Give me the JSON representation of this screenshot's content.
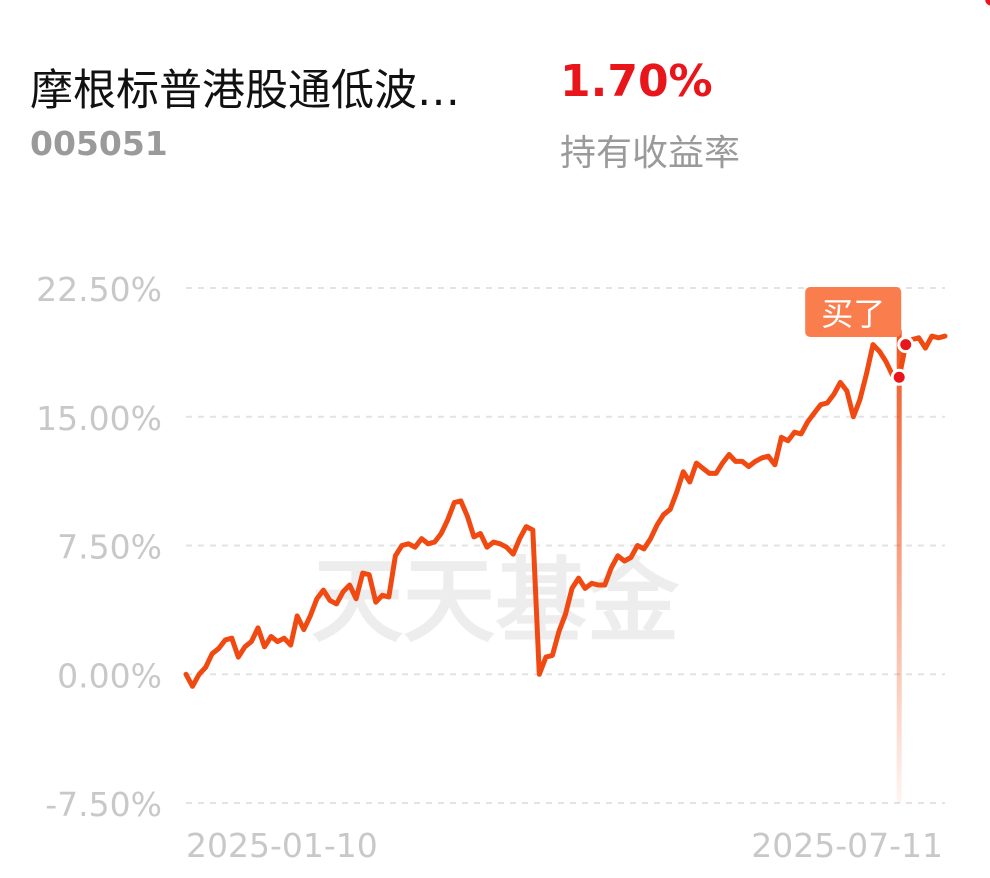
{
  "header": {
    "fund_name": "摩根标普港股通低波…",
    "fund_code": "005051",
    "holding_return": "1.70%",
    "holding_return_label": "持有收益率"
  },
  "colors": {
    "line": "#f04a12",
    "return_positive": "#e8161b",
    "marker_tag": "#fa7d4e",
    "axis_text": "#c8c8c8",
    "grid": "#e3e3e3"
  },
  "chart_data": {
    "type": "line",
    "watermark": "天天基金",
    "y_ticks": [
      "22.50%",
      "15.00%",
      "7.50%",
      "0.00%",
      "-7.50%"
    ],
    "y_tick_values": [
      22.5,
      15,
      7.5,
      0,
      -7.5
    ],
    "ylim": [
      -7.5,
      22.5
    ],
    "x_tick_labels": [
      "2025-01-10",
      "2025-07-11"
    ],
    "grid": "horizontal dashed",
    "buy_marker_label": "买了",
    "buy_index": 109,
    "trade_point_indices": [
      109,
      110,
      123,
      126,
      127
    ],
    "series": [
      {
        "values": [
          0.0,
          -0.7,
          0.0,
          0.4,
          1.2,
          1.5,
          2.0,
          2.1,
          1.0,
          1.6,
          1.9,
          2.7,
          1.6,
          2.2,
          1.9,
          2.1,
          1.7,
          3.4,
          2.6,
          3.4,
          4.4,
          4.9,
          4.3,
          4.1,
          4.8,
          5.2,
          4.4,
          5.9,
          5.8,
          4.2,
          4.6,
          4.5,
          6.9,
          7.5,
          7.6,
          7.4,
          7.9,
          7.6,
          7.7,
          8.2,
          9.0,
          10.0,
          10.1,
          9.2,
          8.0,
          8.2,
          7.4,
          7.7,
          7.6,
          7.4,
          7.0,
          7.9,
          8.6,
          8.4,
          0.0,
          1.0,
          1.1,
          2.5,
          3.5,
          5.0,
          5.6,
          5.0,
          5.3,
          5.2,
          5.2,
          6.2,
          6.9,
          6.6,
          6.8,
          7.5,
          7.3,
          7.9,
          8.7,
          9.3,
          9.6,
          10.6,
          11.8,
          11.2,
          12.3,
          12.0,
          11.7,
          11.7,
          12.3,
          12.8,
          12.4,
          12.4,
          12.1,
          12.4,
          12.6,
          12.7,
          12.2,
          13.8,
          13.6,
          14.1,
          14.0,
          14.7,
          15.2,
          15.7,
          15.8,
          16.3,
          17.0,
          16.5,
          15.0,
          16.0,
          17.5,
          19.2,
          18.8,
          18.2,
          17.4,
          17.3,
          19.2,
          19.5,
          19.6,
          19.0,
          19.7,
          19.6,
          19.7
        ]
      }
    ]
  }
}
